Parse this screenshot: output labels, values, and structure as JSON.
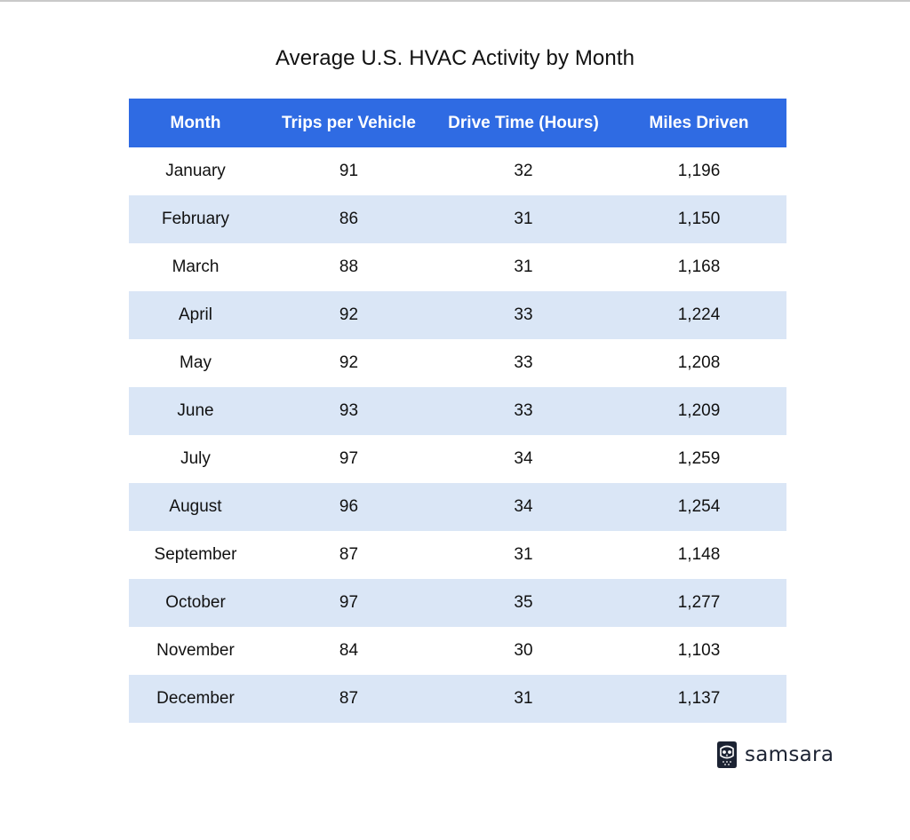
{
  "chart_data": {
    "type": "table",
    "title": "Average U.S. HVAC Activity by Month",
    "columns": [
      "Month",
      "Trips per Vehicle",
      "Drive Time (Hours)",
      "Miles Driven"
    ],
    "rows": [
      [
        "January",
        "91",
        "32",
        "1,196"
      ],
      [
        "February",
        "86",
        "31",
        "1,150"
      ],
      [
        "March",
        "88",
        "31",
        "1,168"
      ],
      [
        "April",
        "92",
        "33",
        "1,224"
      ],
      [
        "May",
        "92",
        "33",
        "1,208"
      ],
      [
        "June",
        "93",
        "33",
        "1,209"
      ],
      [
        "July",
        "97",
        "34",
        "1,259"
      ],
      [
        "August",
        "96",
        "34",
        "1,254"
      ],
      [
        "September",
        "87",
        "31",
        "1,148"
      ],
      [
        "October",
        "97",
        "35",
        "1,277"
      ],
      [
        "November",
        "84",
        "30",
        "1,103"
      ],
      [
        "December",
        "87",
        "31",
        "1,137"
      ]
    ]
  },
  "logo": {
    "text": "samsara",
    "icon": "samsara-owl-logo-icon"
  },
  "colors": {
    "header_bg": "#2f6be3",
    "header_text": "#ffffff",
    "stripe_bg": "#dae6f6",
    "row_bg": "#ffffff",
    "text": "#111111"
  }
}
